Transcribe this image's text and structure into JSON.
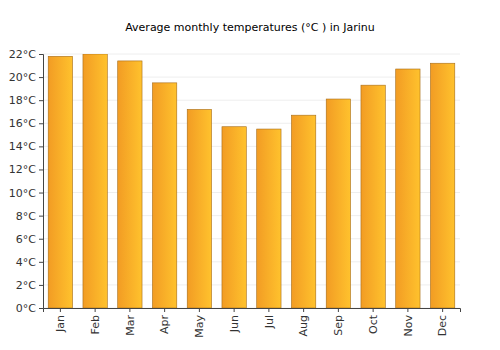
{
  "chart_data": {
    "type": "bar",
    "title": "Average monthly temperatures (°C ) in Jarinu",
    "categories": [
      "Jan",
      "Feb",
      "Mar",
      "Apr",
      "May",
      "Jun",
      "Jul",
      "Aug",
      "Sep",
      "Oct",
      "Nov",
      "Dec"
    ],
    "values": [
      21.8,
      22.0,
      21.4,
      19.5,
      17.2,
      15.7,
      15.5,
      16.7,
      18.1,
      19.3,
      20.7,
      21.2
    ],
    "color": "#ffa526",
    "ylim": [
      0,
      22
    ],
    "yticks": [
      {
        "value": 0,
        "label": "0°C"
      },
      {
        "value": 2,
        "label": "2°C"
      },
      {
        "value": 4,
        "label": "4°C"
      },
      {
        "value": 6,
        "label": "6°C"
      },
      {
        "value": 8,
        "label": "8°C"
      },
      {
        "value": 10,
        "label": "10°C"
      },
      {
        "value": 12,
        "label": "12°C"
      },
      {
        "value": 14,
        "label": "14°C"
      },
      {
        "value": 16,
        "label": "16°C"
      },
      {
        "value": 18,
        "label": "18°C"
      },
      {
        "value": 20,
        "label": "20°C"
      },
      {
        "value": 22,
        "label": "22°C"
      }
    ],
    "grid": true
  }
}
